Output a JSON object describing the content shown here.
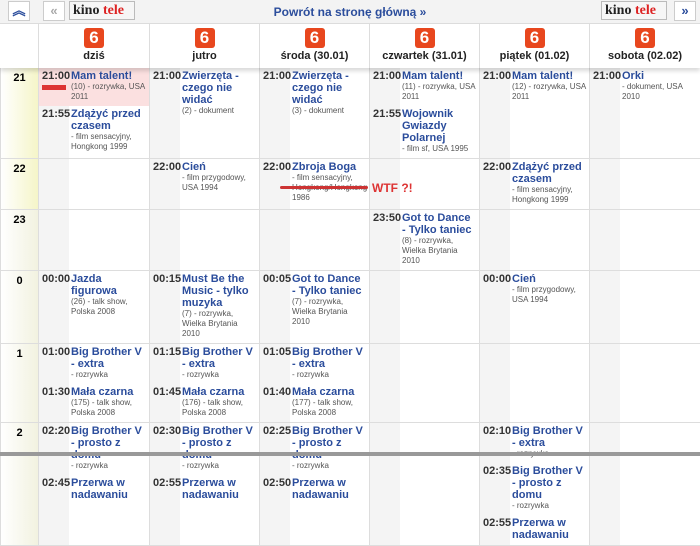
{
  "topbar": {
    "up_icon": "double-chevron-up",
    "back_icon": "double-chevron-left",
    "forward_icon": "double-chevron-right",
    "logo_main": "kino",
    "logo_accent": "tele",
    "home_link": "Powrót na stronę główną »"
  },
  "channel_logo": "6",
  "days": [
    "dziś",
    "jutro",
    "środa (30.01)",
    "czwartek (31.01)",
    "piątek (01.02)",
    "sobota (02.02)"
  ],
  "annotation": "WTF ?!",
  "colors": {
    "link": "#2b4d9c",
    "accent": "#e8471e",
    "live": "#fbe0e0",
    "annotation": "#d33"
  },
  "rows": [
    {
      "hour": "21",
      "cells": [
        [
          {
            "time": "21:00",
            "title": "Mam talent!",
            "desc": "(10) - rozrywka, USA 2011",
            "live": true
          },
          {
            "time": "21:55",
            "title": "Zdążyć przed czasem",
            "desc": "- film sensacyjny, Hongkong 1999"
          }
        ],
        [
          {
            "time": "21:00",
            "title": "Zwierzęta - czego nie widać",
            "desc": "(2) - dokument"
          }
        ],
        [
          {
            "time": "21:00",
            "title": "Zwierzęta - czego nie widać",
            "desc": "(3) - dokument"
          }
        ],
        [
          {
            "time": "21:00",
            "title": "Mam talent!",
            "desc": "(11) - rozrywka, USA 2011"
          },
          {
            "time": "21:55",
            "title": "Wojownik Gwiazdy Polarnej",
            "desc": "- film sf, USA 1995"
          }
        ],
        [
          {
            "time": "21:00",
            "title": "Mam talent!",
            "desc": "(12) - rozrywka, USA 2011"
          }
        ],
        [
          {
            "time": "21:00",
            "title": "Orki",
            "desc": "- dokument, USA 2010"
          }
        ]
      ]
    },
    {
      "hour": "22",
      "cells": [
        [],
        [
          {
            "time": "22:00",
            "title": "Cień",
            "desc": "- film przygodowy, USA 1994"
          }
        ],
        [
          {
            "time": "22:00",
            "title": "Zbroja Boga",
            "desc": "- film sensacyjny, Hongkong/Hongkong 1986"
          }
        ],
        [],
        [
          {
            "time": "22:00",
            "title": "Zdążyć przed czasem",
            "desc": "- film sensacyjny, Hongkong 1999"
          }
        ],
        []
      ]
    },
    {
      "hour": "23",
      "cells": [
        [],
        [],
        [],
        [
          {
            "time": "23:50",
            "title": "Got to Dance - Tylko taniec",
            "desc": "(8) - rozrywka, Wielka Brytania 2010"
          }
        ],
        [],
        []
      ]
    },
    {
      "hour": "0",
      "cells": [
        [
          {
            "time": "00:00",
            "title": "Jazda figurowa",
            "desc": "(26) - talk show, Polska 2008"
          }
        ],
        [
          {
            "time": "00:15",
            "title": "Must Be the Music - tylko muzyka",
            "desc": "(7) - rozrywka, Wielka Brytania 2010"
          }
        ],
        [
          {
            "time": "00:05",
            "title": "Got to Dance - Tylko taniec",
            "desc": "(7) - rozrywka, Wielka Brytania 2010"
          }
        ],
        [],
        [
          {
            "time": "00:00",
            "title": "Cień",
            "desc": "- film przygodowy, USA 1994"
          }
        ],
        []
      ]
    },
    {
      "hour": "1",
      "cells": [
        [
          {
            "time": "01:00",
            "title": "Big Brother V - extra",
            "desc": "- rozrywka"
          },
          {
            "time": "01:30",
            "title": "Mała czarna",
            "desc": "(175) - talk show, Polska 2008"
          }
        ],
        [
          {
            "time": "01:15",
            "title": "Big Brother V - extra",
            "desc": "- rozrywka"
          },
          {
            "time": "01:45",
            "title": "Mała czarna",
            "desc": "(176) - talk show, Polska 2008"
          }
        ],
        [
          {
            "time": "01:05",
            "title": "Big Brother V - extra",
            "desc": "- rozrywka"
          },
          {
            "time": "01:40",
            "title": "Mała czarna",
            "desc": "(177) - talk show, Polska 2008"
          }
        ],
        [],
        [],
        []
      ]
    },
    {
      "hour": "2",
      "cells": [
        [
          {
            "time": "02:20",
            "title": "Big Brother V - prosto z domu",
            "desc": "- rozrywka"
          },
          {
            "time": "02:45",
            "title": "Przerwa w nadawaniu",
            "desc": ""
          }
        ],
        [
          {
            "time": "02:30",
            "title": "Big Brother V - prosto z domu",
            "desc": "- rozrywka"
          },
          {
            "time": "02:55",
            "title": "Przerwa w nadawaniu",
            "desc": ""
          }
        ],
        [
          {
            "time": "02:25",
            "title": "Big Brother V - prosto z domu",
            "desc": "- rozrywka"
          },
          {
            "time": "02:50",
            "title": "Przerwa w nadawaniu",
            "desc": ""
          }
        ],
        [],
        [
          {
            "time": "02:10",
            "title": "Big Brother V - extra",
            "desc": "- rozrywka"
          },
          {
            "time": "02:35",
            "title": "Big Brother V - prosto z domu",
            "desc": "- rozrywka"
          },
          {
            "time": "02:55",
            "title": "Przerwa w nadawaniu",
            "desc": ""
          }
        ],
        []
      ]
    }
  ]
}
